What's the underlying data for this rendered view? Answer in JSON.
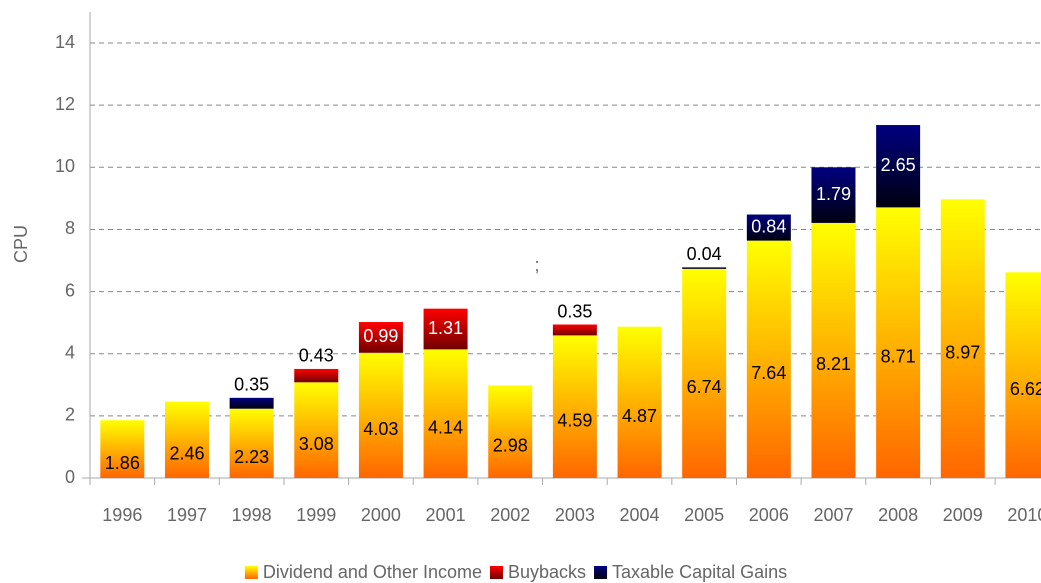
{
  "chart_data": {
    "type": "stacked_bar",
    "y_label": "CPU",
    "annotation": ";",
    "categories": [
      "1996",
      "1997",
      "1998",
      "1999",
      "2000",
      "2001",
      "2002",
      "2003",
      "2004",
      "2005",
      "2006",
      "2007",
      "2008",
      "2009",
      "2010"
    ],
    "series": [
      {
        "name": "Dividend and Other Income",
        "color": "#ffff00",
        "color2": "#ff6600",
        "values": [
          1.86,
          2.46,
          2.23,
          3.08,
          4.03,
          4.14,
          2.98,
          4.59,
          4.87,
          6.74,
          7.64,
          8.21,
          8.71,
          8.97,
          6.62
        ]
      },
      {
        "name": "Buybacks",
        "color": "#ff0000",
        "color2": "#700000",
        "values": [
          null,
          null,
          null,
          0.43,
          0.99,
          1.31,
          null,
          0.35,
          null,
          null,
          null,
          null,
          null,
          null,
          null
        ]
      },
      {
        "name": "Taxable Capital Gains",
        "color": "#000080",
        "color2": "#000010",
        "values": [
          null,
          null,
          0.35,
          null,
          null,
          null,
          null,
          null,
          null,
          0.04,
          0.84,
          1.79,
          2.65,
          null,
          null
        ]
      }
    ],
    "ylim": [
      0,
      14.6
    ],
    "yticks": [
      0,
      2,
      4,
      6,
      8,
      10,
      12,
      14
    ],
    "grid": true
  }
}
